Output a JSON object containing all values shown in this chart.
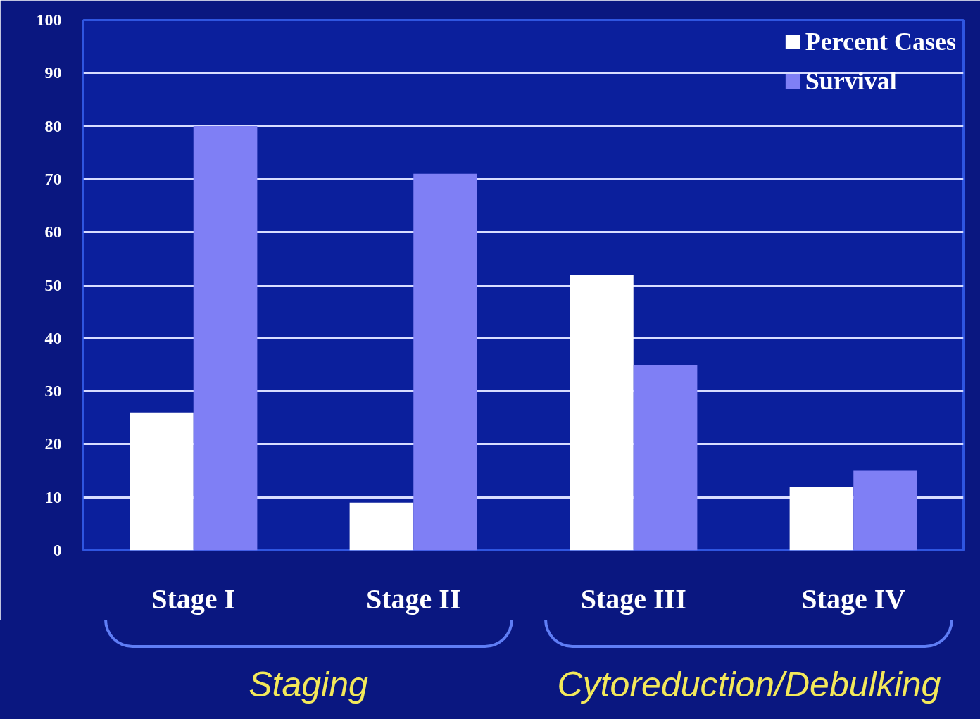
{
  "chart_data": {
    "type": "bar",
    "categories": [
      "Stage I",
      "Stage II",
      "Stage III",
      "Stage IV"
    ],
    "series": [
      {
        "name": "Percent Cases",
        "color": "#ffffff",
        "values": [
          26,
          9,
          52,
          12
        ]
      },
      {
        "name": "Survival",
        "color": "#7f7ff5",
        "values": [
          80,
          71,
          35,
          15
        ]
      }
    ],
    "ylim": [
      0,
      100
    ],
    "yticks": [
      0,
      10,
      20,
      30,
      40,
      50,
      60,
      70,
      80,
      90,
      100
    ],
    "grid": "y",
    "legend": "top right",
    "annotations": [
      "Staging",
      "Cytoreduction/Debulking"
    ]
  }
}
